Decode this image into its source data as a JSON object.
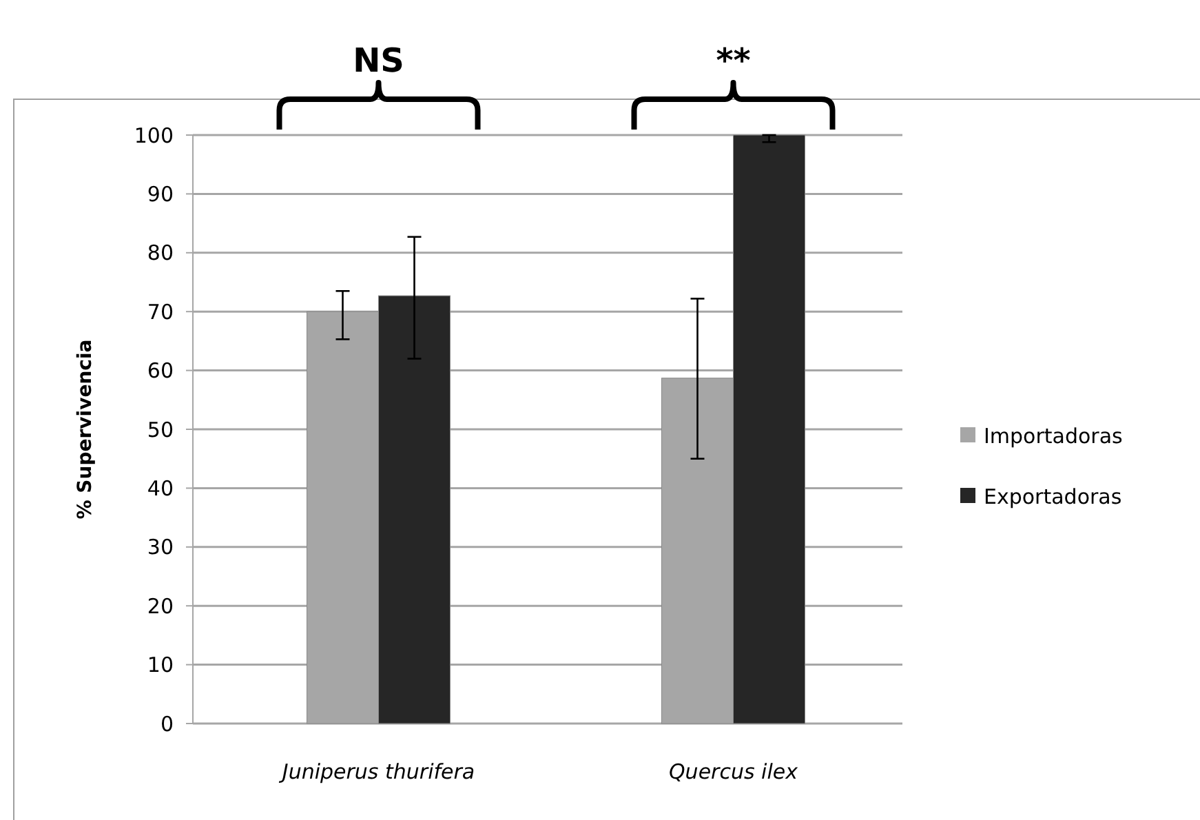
{
  "chart_data": {
    "type": "bar",
    "ylabel": "% Supervivencia",
    "categories": [
      "Juniperus thurifera",
      "Quercus ilex"
    ],
    "series": [
      {
        "name": "Importadoras",
        "color": "#a6a6a6",
        "values": [
          70,
          58.7
        ],
        "errors": [
          [
            65.3,
            73.5
          ],
          [
            45,
            72.2
          ]
        ]
      },
      {
        "name": "Exportadoras",
        "color": "#262626",
        "values": [
          72.7,
          100
        ],
        "errors": [
          [
            62,
            82.7
          ],
          [
            98.8,
            100
          ]
        ]
      }
    ],
    "ylim": [
      0,
      100
    ],
    "yticks": [
      0,
      10,
      20,
      30,
      40,
      50,
      60,
      70,
      80,
      90,
      100
    ],
    "grid": "y",
    "legend": "right",
    "annotations": [
      "NS",
      "**"
    ]
  }
}
